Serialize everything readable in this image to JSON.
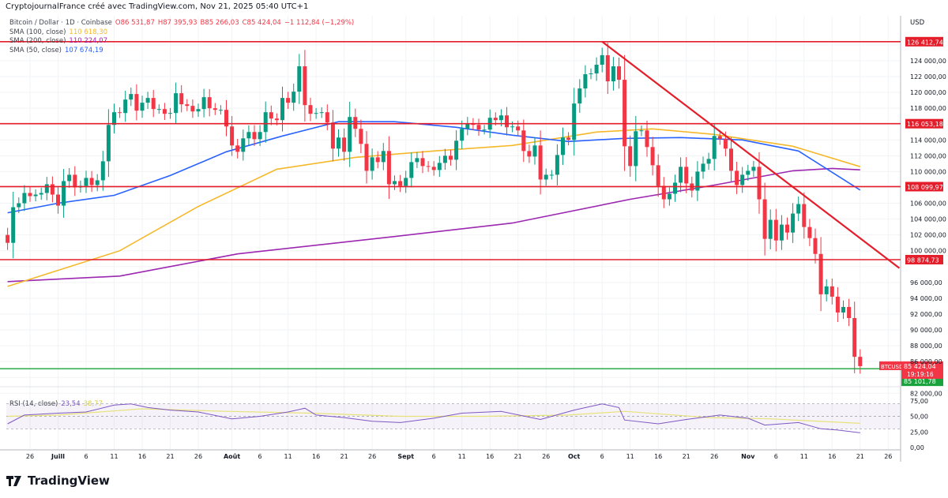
{
  "header": "CryptojournalFrance créé avec TradingView.com, Nov 21, 2025 05:40 UTC+1",
  "legend": {
    "symbol": "Bitcoin / Dollar · 1D · Coinbase",
    "o": "O86 531,87",
    "h": "H87 395,93",
    "l": "B85 266,03",
    "c": "C85 424,04",
    "chg": "−1 112,84 (−1,29%)",
    "sma100_label": "SMA (100, close)",
    "sma100_value": "110 618,30",
    "sma200_label": "SMA (200, close)",
    "sma200_value": "110 224,07",
    "sma50_label": "SMA (50, close)",
    "sma50_value": "107 674,19"
  },
  "currency": "USD",
  "logo": "TradingView",
  "colors": {
    "up": "#089981",
    "down": "#f23645",
    "sma50": "#2962ff",
    "sma100": "#f5b82a",
    "sma200": "#9c27b0",
    "level": "#e41e2b",
    "support": "#1aa33c",
    "rsi": "#7e57c2",
    "rsi_ma": "#e8e27a"
  },
  "chart_data": {
    "type": "candlestick",
    "symbol": "BTCUSD",
    "start_date": "2025-06-22",
    "first_open": 102000,
    "closes": [
      101.0,
      105.5,
      106.0,
      107.3,
      106.9,
      107.1,
      107.3,
      108.4,
      107.1,
      105.7,
      108.8,
      109.6,
      108.0,
      108.2,
      109.2,
      108.3,
      108.9,
      111.3,
      115.9,
      117.5,
      117.4,
      119.1,
      119.8,
      117.7,
      118.7,
      119.3,
      117.9,
      117.9,
      117.3,
      117.4,
      119.9,
      118.5,
      118.3,
      117.6,
      117.9,
      119.4,
      118.0,
      117.8,
      117.8,
      115.7,
      113.3,
      112.5,
      114.2,
      115.0,
      114.1,
      115.0,
      117.5,
      116.7,
      116.5,
      119.3,
      118.7,
      120.1,
      123.3,
      118.4,
      117.3,
      117.4,
      117.5,
      116.2,
      112.9,
      114.3,
      112.5,
      116.9,
      115.4,
      113.5,
      110.1,
      111.8,
      111.2,
      112.6,
      108.4,
      108.8,
      108.2,
      109.2,
      111.2,
      111.7,
      110.7,
      110.6,
      110.2,
      111.1,
      112.0,
      111.5,
      113.9,
      115.4,
      116.1,
      115.9,
      115.3,
      115.3,
      116.8,
      116.5,
      117.1,
      115.6,
      115.7,
      115.2,
      112.6,
      111.9,
      113.3,
      109.0,
      109.6,
      109.6,
      112.1,
      114.3,
      114.0,
      118.6,
      120.5,
      122.3,
      122.4,
      123.5,
      124.7,
      121.4,
      123.3,
      121.6,
      113.2,
      110.7,
      115.1,
      115.2,
      113.1,
      110.8,
      108.2,
      106.5,
      107.2,
      108.6,
      110.6,
      108.5,
      107.6,
      110.0,
      111.0,
      111.6,
      114.5,
      114.1,
      112.9,
      110.1,
      108.3,
      109.6,
      110.1,
      110.6,
      106.5,
      101.5,
      103.9,
      101.3,
      103.3,
      102.3,
      104.7,
      105.9,
      103.0,
      101.6,
      99.6,
      94.5,
      95.5,
      94.2,
      92.2,
      92.9,
      91.5,
      86.6,
      85.424
    ],
    "close_unit": "thousand USD",
    "sma50": [
      [
        "2025-06-22",
        104.8
      ],
      [
        "2025-07-01",
        106.0
      ],
      [
        "2025-07-11",
        107.0
      ],
      [
        "2025-07-21",
        109.5
      ],
      [
        "2025-07-31",
        112.5
      ],
      [
        "2025-08-10",
        114.5
      ],
      [
        "2025-08-20",
        116.3
      ],
      [
        "2025-08-30",
        116.3
      ],
      [
        "2025-09-10",
        115.6
      ],
      [
        "2025-09-20",
        114.6
      ],
      [
        "2025-09-30",
        113.8
      ],
      [
        "2025-10-10",
        114.2
      ],
      [
        "2025-10-20",
        114.3
      ],
      [
        "2025-10-31",
        114.0
      ],
      [
        "2025-11-10",
        112.6
      ],
      [
        "2025-11-21",
        107.67
      ]
    ],
    "sma100": [
      [
        "2025-06-22",
        95.5
      ],
      [
        "2025-07-12",
        100.0
      ],
      [
        "2025-07-26",
        105.6
      ],
      [
        "2025-08-09",
        110.3
      ],
      [
        "2025-08-23",
        111.8
      ],
      [
        "2025-09-06",
        112.6
      ],
      [
        "2025-09-20",
        113.3
      ],
      [
        "2025-10-05",
        115.0
      ],
      [
        "2025-10-15",
        115.4
      ],
      [
        "2025-10-26",
        114.7
      ],
      [
        "2025-11-09",
        113.2
      ],
      [
        "2025-11-21",
        110.62
      ]
    ],
    "sma200": [
      [
        "2025-06-22",
        96.1
      ],
      [
        "2025-07-12",
        96.8
      ],
      [
        "2025-08-02",
        99.6
      ],
      [
        "2025-08-30",
        101.8
      ],
      [
        "2025-09-20",
        103.5
      ],
      [
        "2025-10-11",
        106.5
      ],
      [
        "2025-10-26",
        108.3
      ],
      [
        "2025-11-09",
        110.1
      ],
      [
        "2025-11-16",
        110.4
      ],
      [
        "2025-11-21",
        110.22
      ]
    ],
    "levels": [
      {
        "value": 126412.74,
        "label": "126 412,74"
      },
      {
        "value": 116053.18,
        "label": "116 053,18"
      },
      {
        "value": 108099.97,
        "label": "108 099,97"
      },
      {
        "value": 98874.73,
        "label": "98 874,73"
      }
    ],
    "support": {
      "value": 85101.78,
      "label": "85 101,78"
    },
    "last_price": {
      "label": "85 424,04",
      "tag": "BTCUSD",
      "countdown": "19:19:16",
      "value": 85424.04
    },
    "trendline": [
      [
        "2025-10-06",
        126412
      ],
      [
        "2025-11-28",
        97800
      ]
    ],
    "y_ticks": [
      [
        "124000",
        "124 000,00"
      ],
      [
        "122000",
        "122 000,00"
      ],
      [
        "120000",
        "120 000,00"
      ],
      [
        "118000",
        "118 000,00"
      ],
      [
        "114000",
        "114 000,00"
      ],
      [
        "112000",
        "112 000,00"
      ],
      [
        "110000",
        "110 000,00"
      ],
      [
        "106000",
        "106 000,00"
      ],
      [
        "104000",
        "104 000,00"
      ],
      [
        "102000",
        "102 000,00"
      ],
      [
        "100000",
        "100 000,00"
      ],
      [
        "96000",
        "96 000,00"
      ],
      [
        "94000",
        "94 000,00"
      ],
      [
        "92000",
        "92 000,00"
      ],
      [
        "90000",
        "90 000,00"
      ],
      [
        "88000",
        "88 000,00"
      ],
      [
        "86000",
        "86 000,00"
      ],
      [
        "82000",
        "82 000,00"
      ]
    ],
    "ylim": [
      82000,
      127000
    ],
    "x_ticks": [
      [
        "2025-06-26",
        "26"
      ],
      [
        "2025-07-01",
        "Juill"
      ],
      [
        "2025-07-06",
        "6"
      ],
      [
        "2025-07-11",
        "11"
      ],
      [
        "2025-07-16",
        "16"
      ],
      [
        "2025-07-21",
        "21"
      ],
      [
        "2025-07-26",
        "26"
      ],
      [
        "2025-08-01",
        "Août"
      ],
      [
        "2025-08-06",
        "6"
      ],
      [
        "2025-08-11",
        "11"
      ],
      [
        "2025-08-16",
        "16"
      ],
      [
        "2025-08-21",
        "21"
      ],
      [
        "2025-08-26",
        "26"
      ],
      [
        "2025-09-01",
        "Sept"
      ],
      [
        "2025-09-06",
        "6"
      ],
      [
        "2025-09-11",
        "11"
      ],
      [
        "2025-09-16",
        "16"
      ],
      [
        "2025-09-21",
        "21"
      ],
      [
        "2025-09-26",
        "26"
      ],
      [
        "2025-10-01",
        "Oct"
      ],
      [
        "2025-10-06",
        "6"
      ],
      [
        "2025-10-11",
        "11"
      ],
      [
        "2025-10-16",
        "16"
      ],
      [
        "2025-10-21",
        "21"
      ],
      [
        "2025-10-26",
        "26"
      ],
      [
        "2025-11-01",
        "Nov"
      ],
      [
        "2025-11-06",
        "6"
      ],
      [
        "2025-11-11",
        "11"
      ],
      [
        "2025-11-16",
        "16"
      ],
      [
        "2025-11-21",
        "21"
      ],
      [
        "2025-11-26",
        "26"
      ]
    ],
    "rsi": {
      "label": "RSI (14, close)",
      "value": "23,54",
      "ma_value": "38,77",
      "ticks": [
        [
          75,
          "75,00"
        ],
        [
          50,
          "50,00"
        ],
        [
          25,
          "25,00"
        ],
        [
          0,
          "0,00"
        ]
      ],
      "band": [
        30,
        70
      ],
      "line": [
        [
          "2025-06-22",
          38
        ],
        [
          "2025-06-25",
          52
        ],
        [
          "2025-07-01",
          55
        ],
        [
          "2025-07-06",
          57
        ],
        [
          "2025-07-11",
          68
        ],
        [
          "2025-07-14",
          70
        ],
        [
          "2025-07-17",
          64
        ],
        [
          "2025-07-21",
          60
        ],
        [
          "2025-07-26",
          57
        ],
        [
          "2025-08-01",
          46
        ],
        [
          "2025-08-06",
          50
        ],
        [
          "2025-08-11",
          57
        ],
        [
          "2025-08-14",
          63
        ],
        [
          "2025-08-16",
          52
        ],
        [
          "2025-08-21",
          48
        ],
        [
          "2025-08-26",
          42
        ],
        [
          "2025-08-31",
          40
        ],
        [
          "2025-09-06",
          47
        ],
        [
          "2025-09-11",
          55
        ],
        [
          "2025-09-18",
          58
        ],
        [
          "2025-09-25",
          45
        ],
        [
          "2025-10-01",
          60
        ],
        [
          "2025-10-06",
          70
        ],
        [
          "2025-10-09",
          64
        ],
        [
          "2025-10-10",
          44
        ],
        [
          "2025-10-16",
          38
        ],
        [
          "2025-10-21",
          45
        ],
        [
          "2025-10-27",
          52
        ],
        [
          "2025-11-01",
          47
        ],
        [
          "2025-11-04",
          36
        ],
        [
          "2025-11-10",
          40
        ],
        [
          "2025-11-14",
          30
        ],
        [
          "2025-11-17",
          28
        ],
        [
          "2025-11-21",
          23.54
        ]
      ],
      "ma": [
        [
          "2025-06-22",
          50
        ],
        [
          "2025-07-01",
          52
        ],
        [
          "2025-07-16",
          62
        ],
        [
          "2025-07-31",
          58
        ],
        [
          "2025-08-15",
          55
        ],
        [
          "2025-08-31",
          50
        ],
        [
          "2025-09-15",
          50
        ],
        [
          "2025-09-30",
          52
        ],
        [
          "2025-10-10",
          58
        ],
        [
          "2025-10-25",
          48
        ],
        [
          "2025-11-05",
          46
        ],
        [
          "2025-11-21",
          38.77
        ]
      ]
    }
  }
}
